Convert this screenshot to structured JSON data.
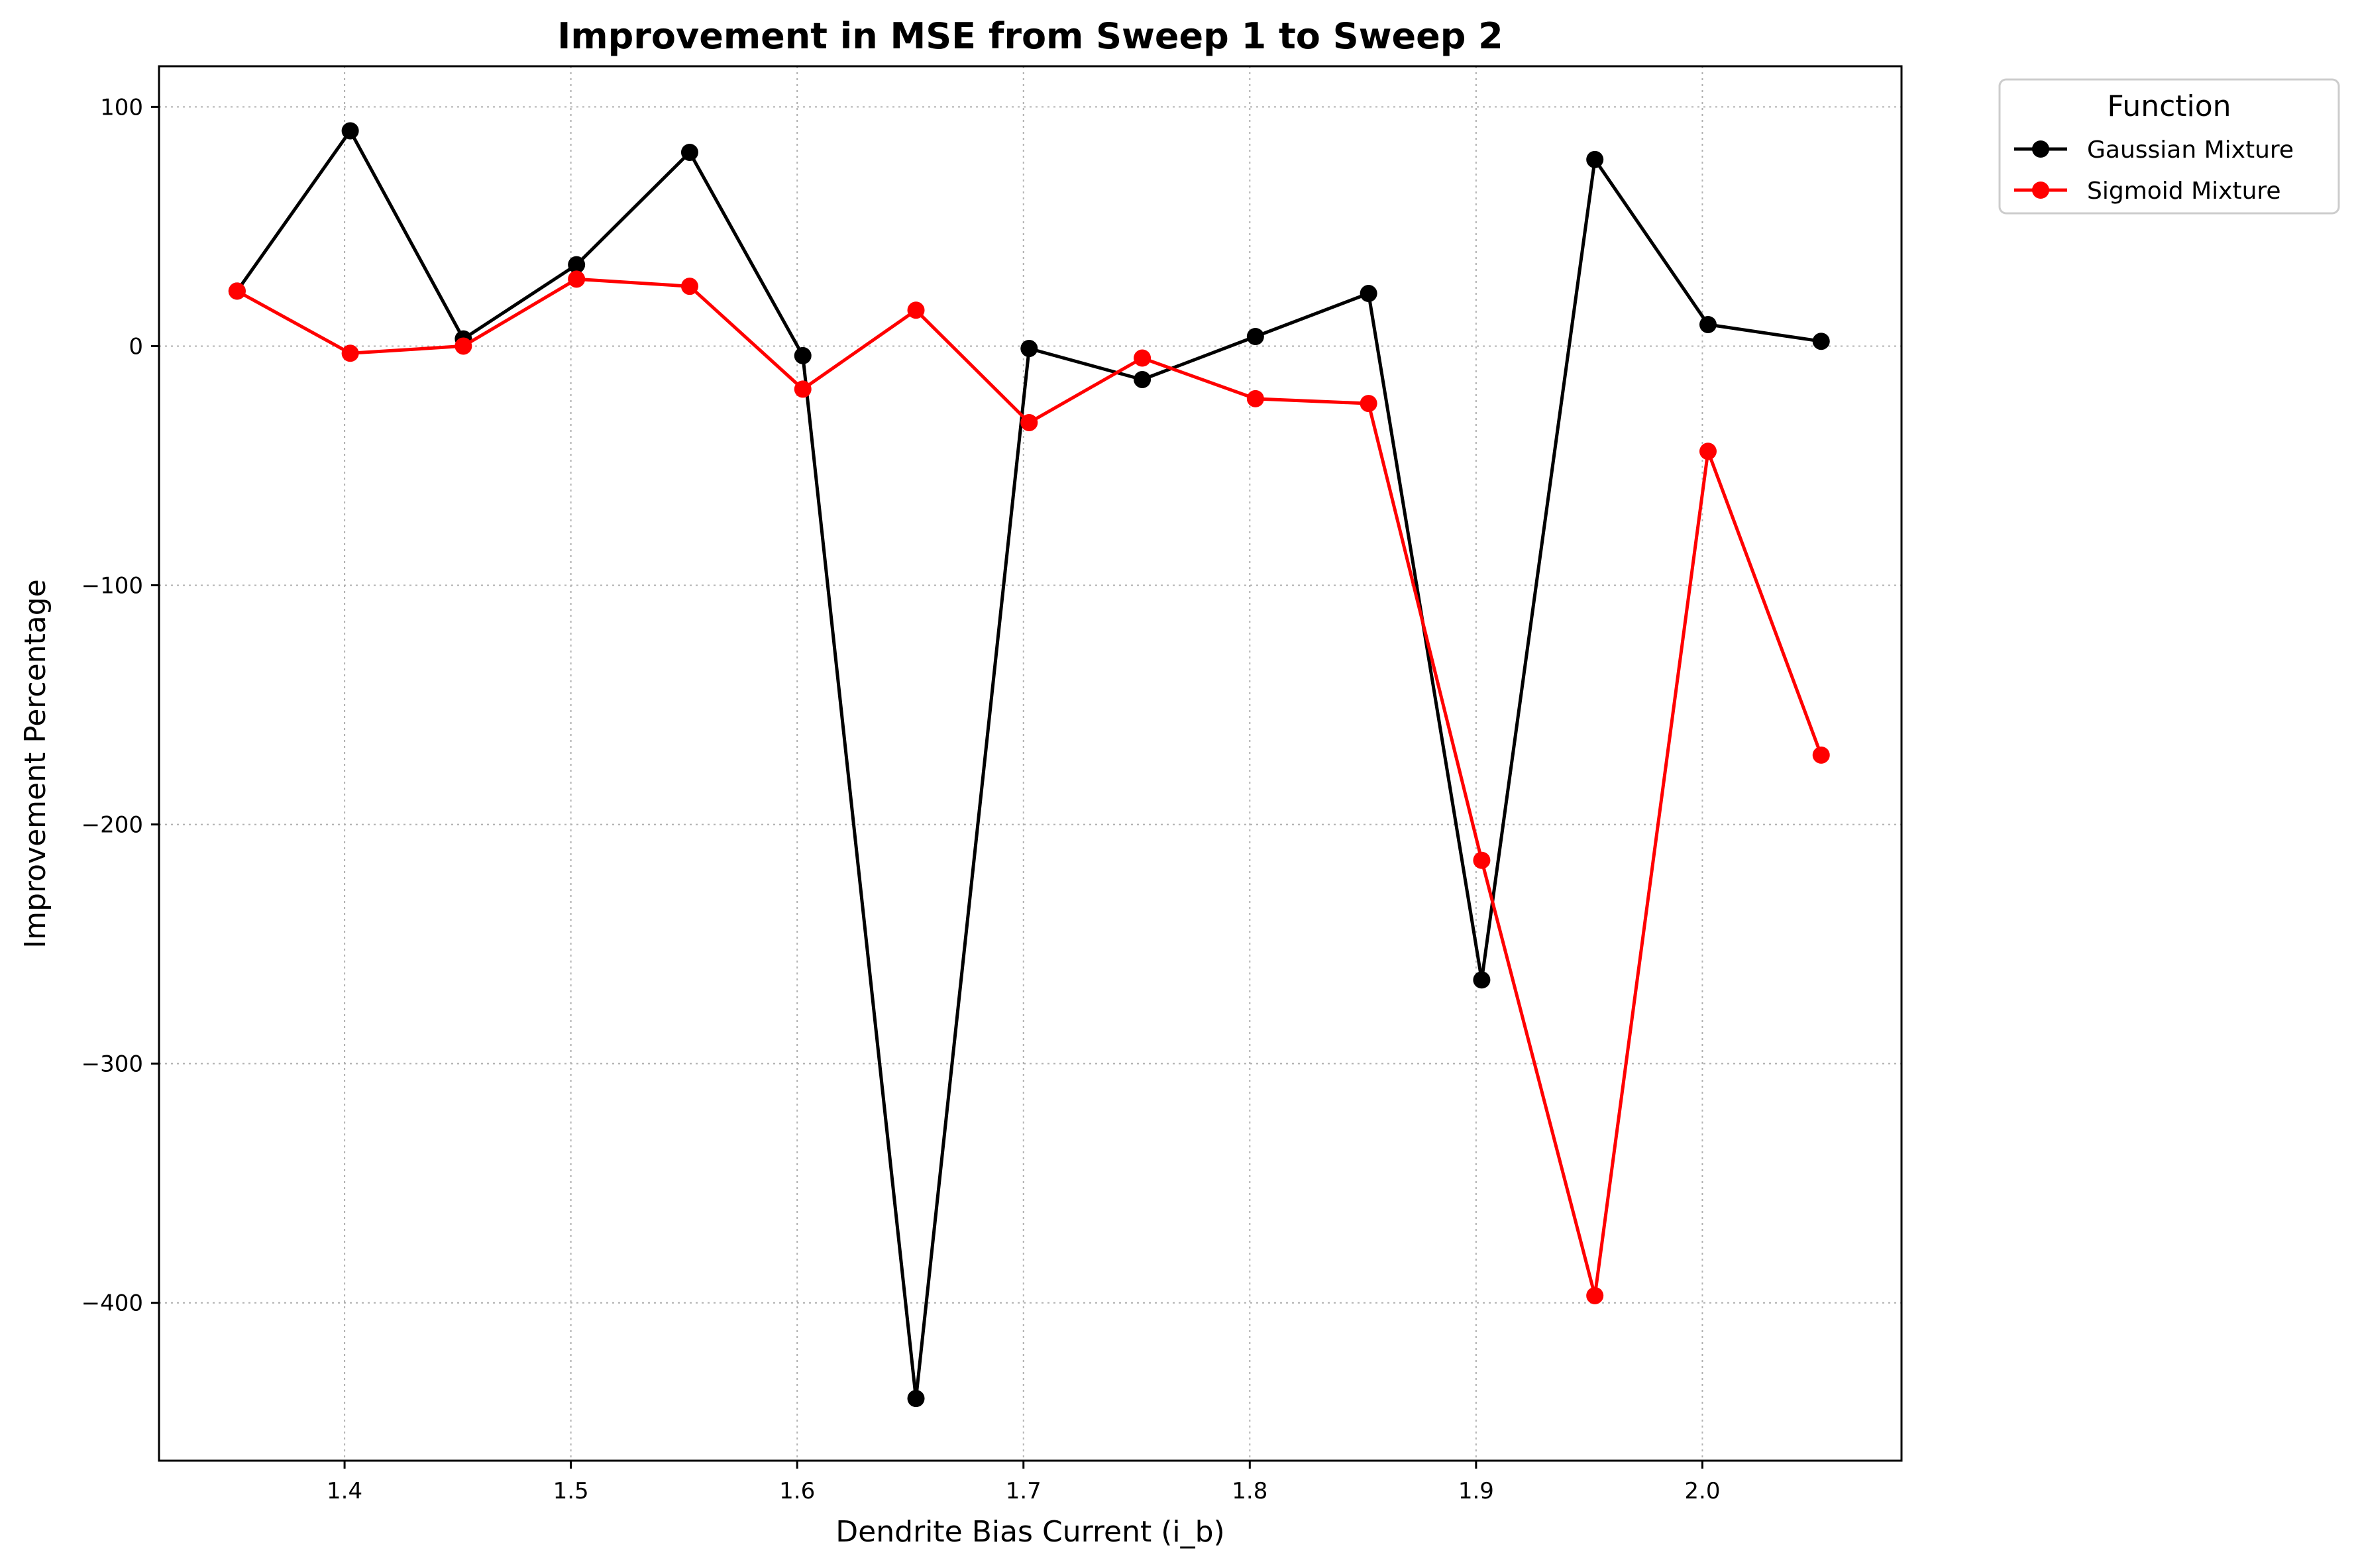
{
  "chart_data": {
    "type": "line",
    "title": "Improvement in MSE from Sweep 1 to Sweep 2",
    "xlabel": "Dendrite Bias Current (i_b)",
    "ylabel": "Improvement Percentage",
    "xlim": [
      1.318,
      2.088
    ],
    "ylim": [
      -466,
      117
    ],
    "xticks": [
      1.4,
      1.5,
      1.6,
      1.7,
      1.8,
      1.9,
      2.0
    ],
    "xtick_labels": [
      "1.4",
      "1.5",
      "1.6",
      "1.7",
      "1.8",
      "1.9",
      "2.0"
    ],
    "yticks": [
      100,
      0,
      -100,
      -200,
      -300,
      -400
    ],
    "ytick_labels": [
      "100",
      "0",
      "−100",
      "−200",
      "−300",
      "−400"
    ],
    "grid": true,
    "legend_title": "Function",
    "legend_position": "outside-top-right",
    "x": [
      1.3525,
      1.4025,
      1.4525,
      1.5025,
      1.5525,
      1.6025,
      1.6525,
      1.7025,
      1.7525,
      1.8025,
      1.8525,
      1.9025,
      1.9525,
      2.0025,
      2.0525
    ],
    "series": [
      {
        "name": "Gaussian Mixture",
        "color": "#000000",
        "values": [
          23,
          90,
          3,
          34,
          81,
          -4,
          -440,
          -1,
          -14,
          4,
          22,
          -265,
          78,
          9,
          2
        ]
      },
      {
        "name": "Sigmoid Mixture",
        "color": "#ff0000",
        "values": [
          23,
          -3,
          0,
          28,
          25,
          -18,
          15,
          -32,
          -5,
          -22,
          -24,
          -215,
          -397,
          -44,
          -171
        ]
      }
    ]
  }
}
